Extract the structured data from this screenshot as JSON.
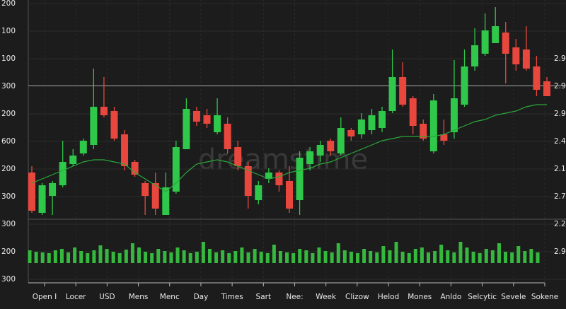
{
  "chart_data": {
    "type": "candlestick",
    "watermark": "dreamstime",
    "left_labels": [
      "200",
      "100",
      "100",
      "300",
      "200",
      "600",
      "200",
      "300",
      "300",
      "200",
      "300"
    ],
    "right_labels": [
      "2.90",
      "2.90",
      "2.90",
      "2.40",
      "2.10",
      "2.70",
      "2.20",
      "2.90"
    ],
    "categories": [
      "Open I",
      "Locer",
      "USD",
      "Mens",
      "Menc",
      "Day",
      "Times",
      "Sart",
      "Nee:",
      "Week",
      "Clizow",
      "Helod",
      "Mones",
      "Anldo",
      "Selcytic",
      "Sevele",
      "Sokene"
    ],
    "ylim": [
      0,
      100
    ],
    "reference_line": 63,
    "up_color": "#2fc84a",
    "down_color": "#e8473d",
    "ma_color": "#2aa83a",
    "volume_color": "#36b83f",
    "open": [
      22,
      3,
      11,
      16,
      26,
      31,
      35,
      53,
      51,
      40,
      27,
      17,
      17,
      2,
      13,
      33,
      51,
      49,
      41,
      45,
      34,
      25,
      9,
      19,
      22,
      18,
      9,
      26,
      30,
      37,
      31,
      42,
      40,
      42,
      43,
      51,
      67,
      57,
      45,
      32,
      40,
      41,
      54,
      72,
      78,
      83,
      88,
      81,
      80,
      72,
      65
    ],
    "high": [
      25,
      17,
      18,
      37,
      33,
      38,
      71,
      67,
      53,
      42,
      28,
      18,
      22,
      22,
      37,
      57,
      53,
      52,
      57,
      48,
      37,
      27,
      18,
      24,
      23,
      25,
      32,
      34,
      37,
      38,
      48,
      43,
      50,
      52,
      53,
      80,
      74,
      58,
      47,
      59,
      47,
      75,
      80,
      90,
      97,
      100,
      93,
      85,
      91,
      77,
      67
    ],
    "low": [
      3,
      2,
      2,
      15,
      25,
      30,
      33,
      48,
      37,
      23,
      20,
      2,
      2,
      2,
      12,
      33,
      44,
      43,
      40,
      31,
      23,
      5,
      7,
      17,
      13,
      3,
      2,
      23,
      27,
      30,
      30,
      37,
      38,
      40,
      41,
      50,
      53,
      40,
      37,
      31,
      35,
      38,
      53,
      70,
      77,
      83,
      64,
      70,
      70,
      58,
      58
    ],
    "close": [
      4,
      16,
      17,
      27,
      30,
      37,
      53,
      49,
      38,
      25,
      21,
      11,
      5,
      15,
      34,
      52,
      46,
      45,
      49,
      33,
      25,
      11,
      16,
      22,
      16,
      5,
      29,
      32,
      35,
      32,
      43,
      39,
      47,
      49,
      51,
      67,
      54,
      44,
      38,
      56,
      37,
      57,
      72,
      82,
      89,
      91,
      78,
      73,
      71,
      61,
      58
    ],
    "ma": [
      17,
      19,
      21,
      23,
      25,
      27,
      28,
      28,
      27,
      26,
      22,
      19,
      16,
      13,
      17,
      22,
      26,
      27,
      28,
      27,
      25,
      23,
      21,
      19,
      20,
      22,
      23,
      24,
      26,
      27,
      29,
      31,
      33,
      35,
      37,
      38,
      39,
      39,
      39,
      39,
      40,
      42,
      44,
      46,
      47,
      49,
      50,
      51,
      53,
      54,
      54
    ],
    "volume_lim": [
      0,
      40
    ],
    "volume": [
      18,
      16,
      15,
      14,
      18,
      20,
      15,
      22,
      17,
      14,
      18,
      25,
      20,
      16,
      14,
      19,
      28,
      22,
      16,
      14,
      20,
      17,
      15,
      22,
      18,
      14,
      16,
      30,
      20,
      15,
      18,
      14,
      17,
      22,
      15,
      20,
      16,
      14,
      26,
      17,
      15,
      14,
      20,
      18,
      14,
      22,
      17,
      15,
      28,
      18,
      16,
      14,
      20,
      17,
      15,
      24,
      18,
      30,
      16,
      14,
      20,
      22,
      15,
      17,
      26,
      18,
      15,
      30,
      22,
      16,
      14,
      20,
      18,
      28,
      16,
      15,
      24,
      17,
      20,
      15
    ]
  }
}
